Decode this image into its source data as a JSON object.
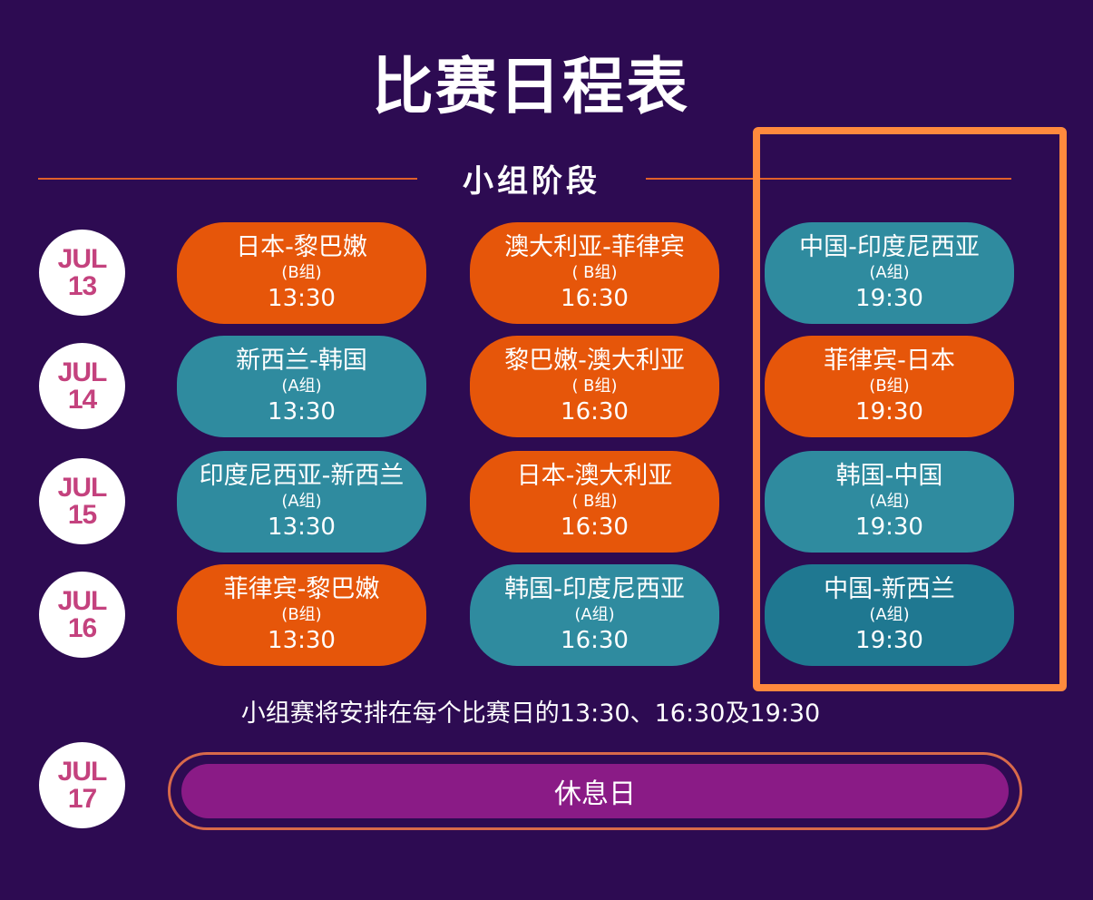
{
  "title": "比赛日程表",
  "section": "小组阶段",
  "colors": {
    "background": "#2d0b52",
    "group_b": "#e6560a",
    "group_a": "#2f8b9f",
    "highlight": "#ff8a3d",
    "rest_day": "#8a1b86",
    "date_text": "#c4427e"
  },
  "rows": [
    {
      "month": "JUL",
      "day": "13",
      "matches": [
        {
          "teams": "日本-黎巴嫩",
          "group": "(B组)",
          "time": "13:30"
        },
        {
          "teams": "澳大利亚-菲律宾",
          "group": "( B组)",
          "time": "16:30"
        },
        {
          "teams": "中国-印度尼西亚",
          "group": "(A组)",
          "time": "19:30"
        }
      ]
    },
    {
      "month": "JUL",
      "day": "14",
      "matches": [
        {
          "teams": "新西兰-韩国",
          "group": "(A组)",
          "time": "13:30"
        },
        {
          "teams": "黎巴嫩-澳大利亚",
          "group": "( B组)",
          "time": "16:30"
        },
        {
          "teams": "菲律宾-日本",
          "group": "(B组)",
          "time": "19:30"
        }
      ]
    },
    {
      "month": "JUL",
      "day": "15",
      "matches": [
        {
          "teams": "印度尼西亚-新西兰",
          "group": "(A组)",
          "time": "13:30"
        },
        {
          "teams": "日本-澳大利亚",
          "group": "( B组)",
          "time": "16:30"
        },
        {
          "teams": "韩国-中国",
          "group": "(A组)",
          "time": "19:30"
        }
      ]
    },
    {
      "month": "JUL",
      "day": "16",
      "matches": [
        {
          "teams": "菲律宾-黎巴嫩",
          "group": "(B组)",
          "time": "13:30"
        },
        {
          "teams": "韩国-印度尼西亚",
          "group": "(A组)",
          "time": "16:30"
        },
        {
          "teams": "中国-新西兰",
          "group": "(A组)",
          "time": "19:30"
        }
      ]
    }
  ],
  "note": "小组赛将安排在每个比赛日的13:30、16:30及19:30",
  "rest": {
    "month": "JUL",
    "day": "17",
    "label": "休息日"
  }
}
